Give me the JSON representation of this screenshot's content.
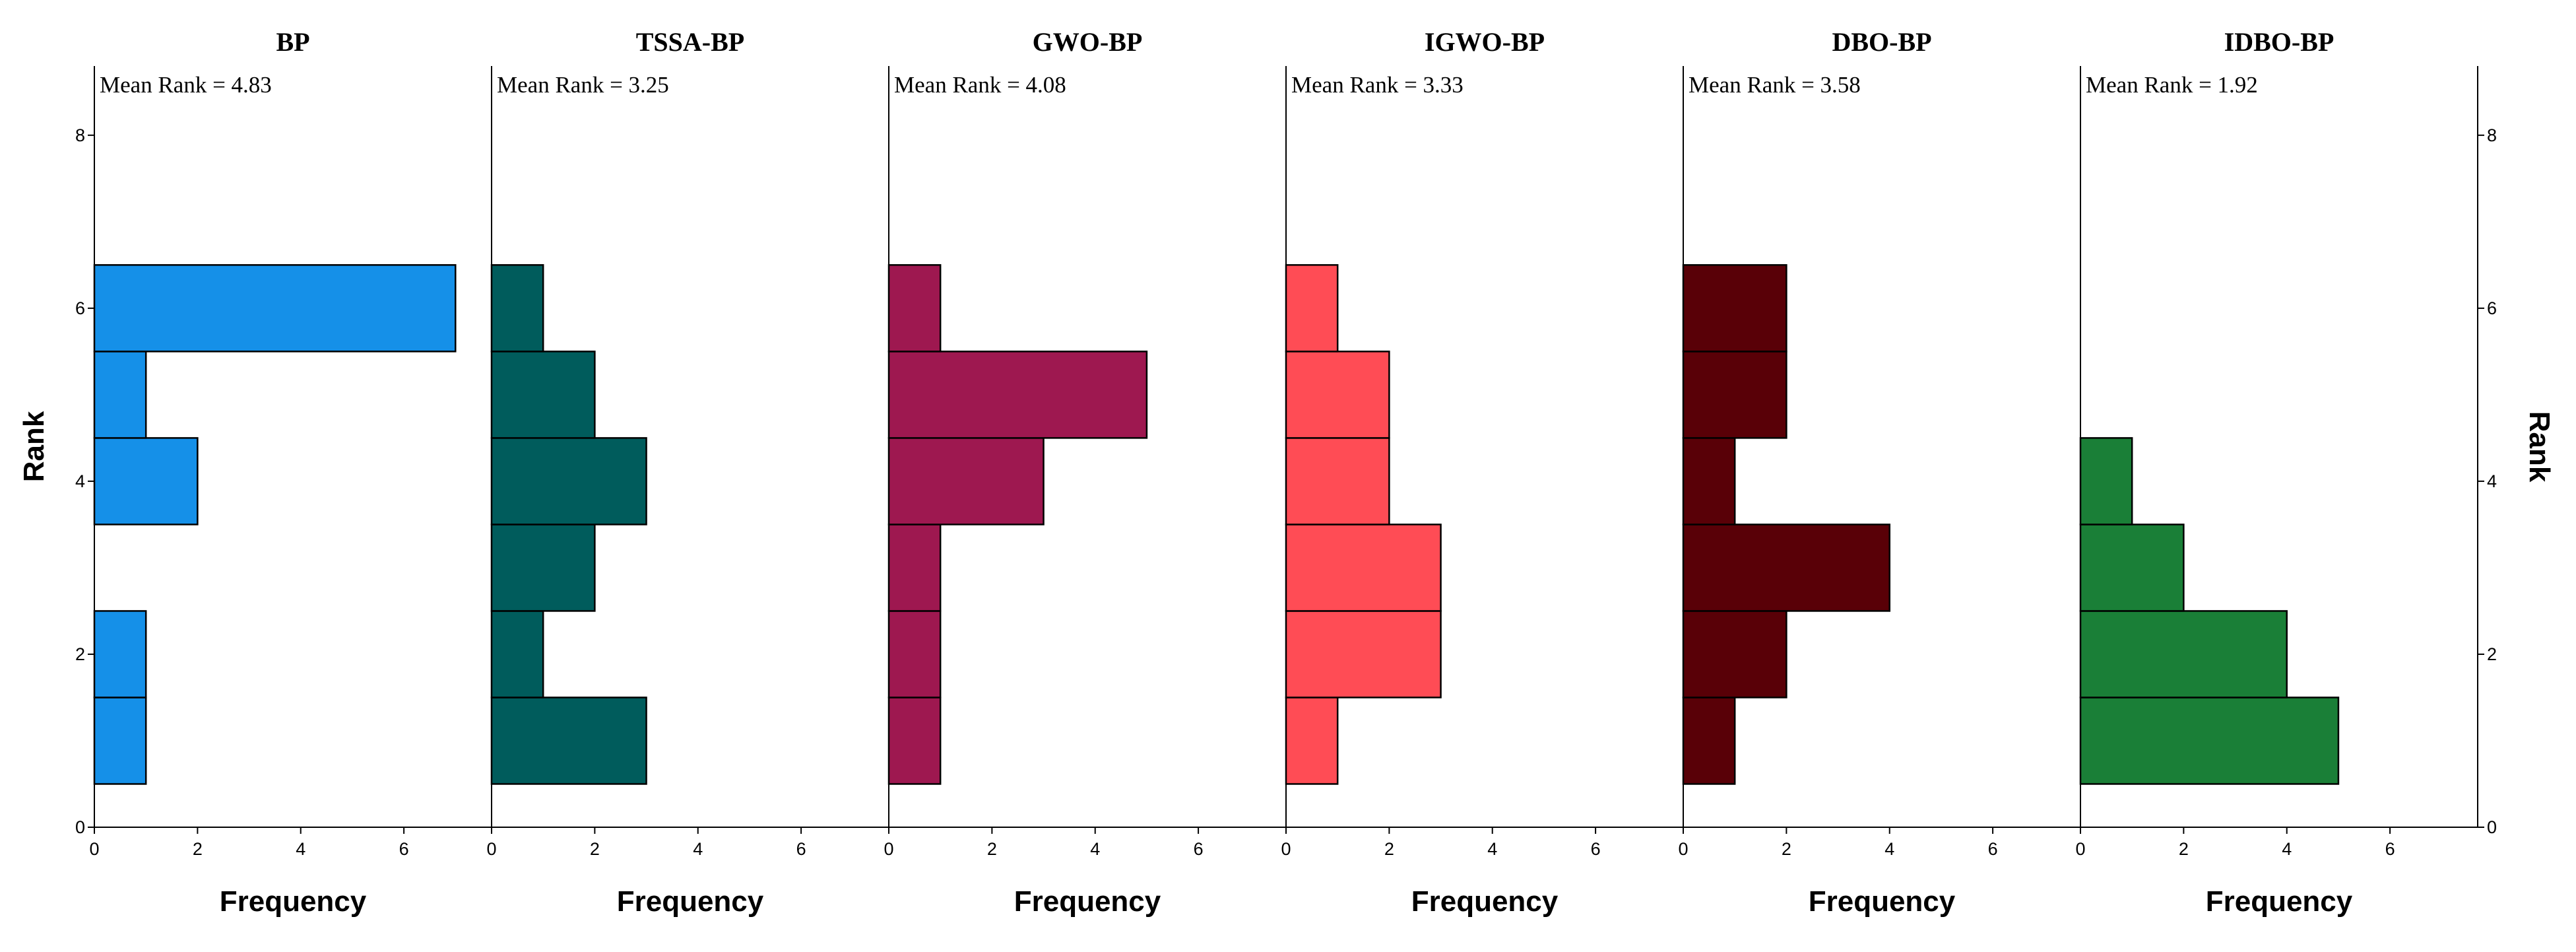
{
  "chart_data": {
    "type": "bar",
    "orientation": "horizontal",
    "ylabel": "Rank",
    "xlabel": "Frequency",
    "ylim": [
      0,
      8.8
    ],
    "xlim": [
      0,
      7.7
    ],
    "y_ticks": [
      0,
      2,
      4,
      6,
      8
    ],
    "x_ticks": [
      0,
      2,
      4,
      6
    ],
    "ranks": [
      1,
      2,
      3,
      4,
      5,
      6
    ],
    "panels": [
      {
        "title": "BP",
        "mean_rank_label": "Mean Rank = 4.83",
        "color": "#1590E8",
        "frequencies": [
          1,
          1,
          0,
          2,
          1,
          7
        ]
      },
      {
        "title": "TSSA-BP",
        "mean_rank_label": "Mean Rank = 3.25",
        "color": "#005C5C",
        "frequencies": [
          3,
          1,
          2,
          3,
          2,
          1
        ]
      },
      {
        "title": "GWO-BP",
        "mean_rank_label": "Mean Rank = 4.08",
        "color": "#9E1850",
        "frequencies": [
          1,
          1,
          1,
          3,
          5,
          1
        ]
      },
      {
        "title": "IGWO-BP",
        "mean_rank_label": "Mean Rank = 3.33",
        "color": "#FF4C55",
        "frequencies": [
          1,
          3,
          3,
          2,
          2,
          1
        ]
      },
      {
        "title": "DBO-BP",
        "mean_rank_label": "Mean Rank = 3.58",
        "color": "#590007",
        "frequencies": [
          1,
          2,
          4,
          1,
          2,
          2
        ]
      },
      {
        "title": "IDBO-BP",
        "mean_rank_label": "Mean Rank = 1.92",
        "color": "#1A7F37",
        "frequencies": [
          5,
          4,
          2,
          1,
          0,
          0
        ]
      }
    ]
  }
}
